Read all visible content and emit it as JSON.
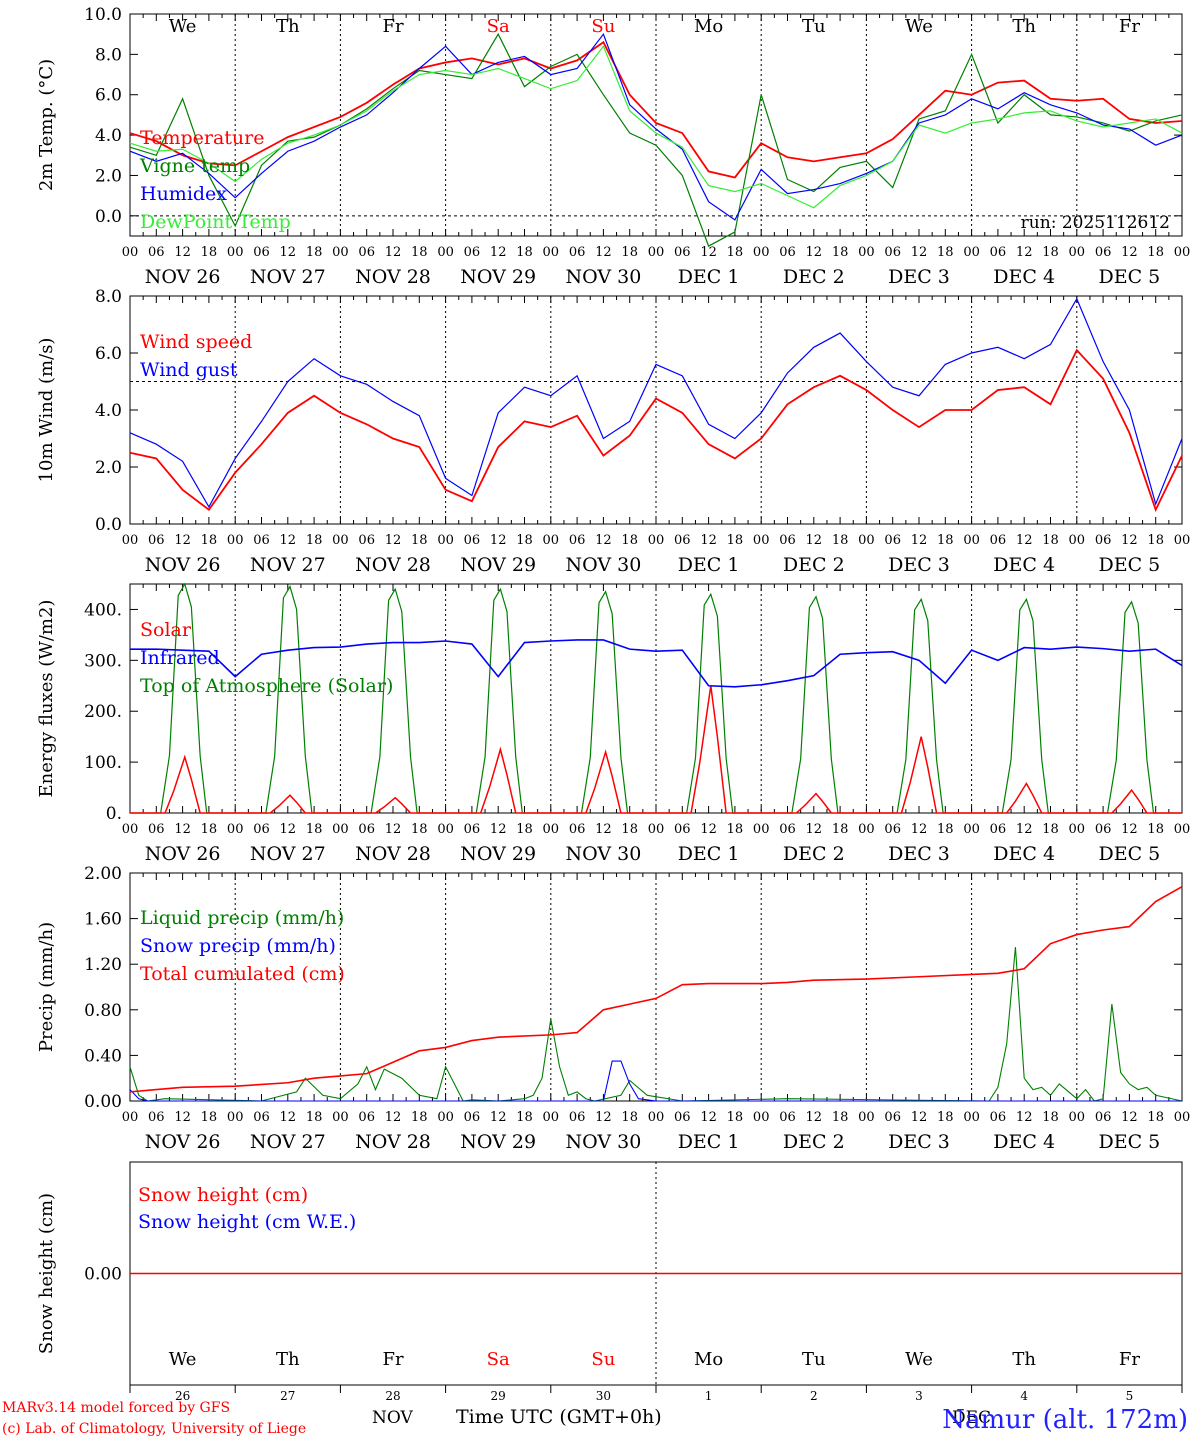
{
  "page": {
    "station": "Namur (alt. 172m)",
    "credit1": "MARv3.14 model forced by GFS",
    "credit2": "(c) Lab. of Climatology, University of Liege",
    "month_label": "NOV",
    "month_label2": "DEC",
    "xaxis_title": "Time UTC (GMT+0h)",
    "run_label": "run: 2025112612",
    "hour_labels": [
      "00",
      "06",
      "12",
      "18"
    ],
    "final_hour_label": "00",
    "date_labels": [
      "NOV 26",
      "NOV 27",
      "NOV 28",
      "NOV 29",
      "NOV 30",
      "DEC  1",
      "DEC  2",
      "DEC  3",
      "DEC  4",
      "DEC  5"
    ],
    "weekdays": [
      "We",
      "Th",
      "Fr",
      "Sa",
      "Su",
      "Mo",
      "Tu",
      "We",
      "Th",
      "Fr"
    ],
    "weekday_colors": [
      "#000000",
      "#000000",
      "#000000",
      "#ff0000",
      "#ff0000",
      "#000000",
      "#000000",
      "#000000",
      "#000000",
      "#000000"
    ],
    "day_numbers": [
      "26",
      "27",
      "28",
      "29",
      "30",
      "1",
      "2",
      "3",
      "4",
      "5"
    ],
    "colors": {
      "red": "#ff0000",
      "green": "#008000",
      "blue": "#0000ff",
      "lightgreen": "#33ee33",
      "station": "#2222ff"
    }
  },
  "chart_data": [
    {
      "id": "temp",
      "type": "line",
      "ylabel": "2m Temp. (°C)",
      "ylim": [
        -1,
        10
      ],
      "yticks": [
        0,
        2,
        4,
        6,
        8,
        10
      ],
      "ytick_labels": [
        "0.0",
        "2.0",
        "4.0",
        "6.0",
        "8.0",
        "10.0"
      ],
      "ref_line": 0,
      "x_hours": [
        0,
        6,
        12,
        18,
        24,
        30,
        36,
        42,
        48,
        54,
        60,
        66,
        72,
        78,
        84,
        90,
        96,
        102,
        108,
        114,
        120,
        126,
        132,
        138,
        144,
        150,
        156,
        162,
        168,
        174,
        180,
        186,
        192,
        198,
        204,
        210,
        216,
        222,
        228,
        234,
        240
      ],
      "series": [
        {
          "name": "Temperature",
          "color": "#ff0000",
          "values": [
            4.1,
            3.7,
            3.0,
            2.6,
            2.5,
            3.2,
            3.9,
            4.4,
            4.9,
            5.6,
            6.5,
            7.3,
            7.6,
            7.8,
            7.5,
            7.8,
            7.3,
            7.7,
            8.6,
            6.0,
            4.6,
            4.1,
            2.2,
            1.9,
            3.6,
            2.9,
            2.7,
            2.9,
            3.1,
            3.8,
            5.0,
            6.2,
            6.0,
            6.6,
            6.7,
            5.8,
            5.7,
            5.8,
            4.8,
            4.6,
            4.7
          ]
        },
        {
          "name": "Vigne temp",
          "color": "#008000",
          "values": [
            3.4,
            3.0,
            5.8,
            2.0,
            -0.5,
            2.5,
            3.7,
            3.9,
            4.5,
            5.3,
            6.3,
            7.2,
            7.0,
            6.8,
            9.0,
            6.4,
            7.4,
            8.0,
            6.0,
            4.1,
            3.5,
            2.0,
            -1.5,
            -0.8,
            6.0,
            1.8,
            1.2,
            2.4,
            2.7,
            1.4,
            4.8,
            5.2,
            8.0,
            4.6,
            6.0,
            5.0,
            4.9,
            4.6,
            4.2,
            4.7,
            5.0
          ]
        },
        {
          "name": "Humidex",
          "color": "#0000ff",
          "values": [
            3.2,
            2.7,
            3.1,
            2.1,
            0.9,
            2.1,
            3.2,
            3.7,
            4.4,
            5.0,
            6.1,
            7.3,
            8.4,
            7.0,
            7.6,
            7.9,
            7.0,
            7.3,
            9.0,
            5.5,
            4.3,
            3.3,
            0.7,
            -0.2,
            2.3,
            1.1,
            1.3,
            1.6,
            2.1,
            2.7,
            4.6,
            5.0,
            5.8,
            5.3,
            6.1,
            5.5,
            5.1,
            4.5,
            4.3,
            3.5,
            4.0
          ]
        },
        {
          "name": "DewPoint Temp",
          "color": "#33ee33",
          "values": [
            3.6,
            3.2,
            3.3,
            2.6,
            1.7,
            2.8,
            3.6,
            4.0,
            4.5,
            5.2,
            6.2,
            7.0,
            7.2,
            7.0,
            7.3,
            6.8,
            6.3,
            6.7,
            8.4,
            5.2,
            4.1,
            3.4,
            1.5,
            1.2,
            1.6,
            1.0,
            0.4,
            1.5,
            2.0,
            2.7,
            4.5,
            4.1,
            4.6,
            4.8,
            5.1,
            5.2,
            4.7,
            4.4,
            4.6,
            4.8,
            4.1
          ]
        }
      ]
    },
    {
      "id": "wind",
      "type": "line",
      "ylabel": "10m Wind (m/s)",
      "ylim": [
        0,
        8
      ],
      "yticks": [
        0,
        2,
        4,
        6,
        8
      ],
      "ytick_labels": [
        "0.0",
        "2.0",
        "4.0",
        "6.0",
        "8.0"
      ],
      "ref_line": 5,
      "x_hours": [
        0,
        6,
        12,
        18,
        24,
        30,
        36,
        42,
        48,
        54,
        60,
        66,
        72,
        78,
        84,
        90,
        96,
        102,
        108,
        114,
        120,
        126,
        132,
        138,
        144,
        150,
        156,
        162,
        168,
        174,
        180,
        186,
        192,
        198,
        204,
        210,
        216,
        222,
        228,
        234,
        240
      ],
      "series": [
        {
          "name": "Wind speed",
          "color": "#ff0000",
          "values": [
            2.5,
            2.3,
            1.2,
            0.5,
            1.8,
            2.8,
            3.9,
            4.5,
            3.9,
            3.5,
            3.0,
            2.7,
            1.2,
            0.8,
            2.7,
            3.6,
            3.4,
            3.8,
            2.4,
            3.1,
            4.4,
            3.9,
            2.8,
            2.3,
            3.0,
            4.2,
            4.8,
            5.2,
            4.7,
            4.0,
            3.4,
            4.0,
            4.0,
            4.7,
            4.8,
            4.2,
            6.1,
            5.1,
            3.2,
            0.5,
            2.4
          ]
        },
        {
          "name": "Wind gust",
          "color": "#0000ff",
          "values": [
            3.2,
            2.8,
            2.2,
            0.6,
            2.3,
            3.6,
            5.0,
            5.8,
            5.2,
            4.9,
            4.3,
            3.8,
            1.6,
            1.0,
            3.9,
            4.8,
            4.5,
            5.2,
            3.0,
            3.6,
            5.6,
            5.2,
            3.5,
            3.0,
            3.9,
            5.3,
            6.2,
            6.7,
            5.7,
            4.8,
            4.5,
            5.6,
            6.0,
            6.2,
            5.8,
            6.3,
            7.9,
            5.7,
            4.0,
            0.7,
            3.0
          ]
        }
      ]
    },
    {
      "id": "energy",
      "type": "line",
      "ylabel": "Energy fluxes (W/m2)",
      "ylim": [
        0,
        450
      ],
      "yticks": [
        0,
        100,
        200,
        300,
        400
      ],
      "ytick_labels": [
        "0.",
        "100.",
        "200.",
        "300.",
        "400."
      ],
      "infrared_hours": [
        0,
        6,
        12,
        18,
        24,
        30,
        36,
        42,
        48,
        54,
        60,
        66,
        72,
        78,
        84,
        90,
        96,
        102,
        108,
        114,
        120,
        126,
        132,
        138,
        144,
        150,
        156,
        162,
        168,
        174,
        180,
        186,
        192,
        198,
        204,
        210,
        216,
        222,
        228,
        234,
        240
      ],
      "infrared_values": [
        322,
        322,
        320,
        318,
        268,
        312,
        320,
        325,
        326,
        332,
        335,
        335,
        338,
        332,
        268,
        335,
        338,
        340,
        340,
        322,
        318,
        320,
        250,
        248,
        252,
        260,
        270,
        312,
        315,
        317,
        300,
        255,
        320,
        300,
        325,
        322,
        326,
        323,
        318,
        322,
        290
      ],
      "toa_peaks": [
        450,
        445,
        440,
        440,
        435,
        430,
        425,
        420,
        420,
        415
      ],
      "solar_peaks": [
        110,
        35,
        30,
        125,
        120,
        250,
        38,
        150,
        58,
        45
      ],
      "series": [
        {
          "name": "Solar",
          "color": "#ff0000"
        },
        {
          "name": "Infrared",
          "color": "#0000ff"
        },
        {
          "name": "Top of Atmosphere (Solar)",
          "color": "#008000"
        }
      ]
    },
    {
      "id": "precip",
      "type": "line",
      "ylabel": "Precip (mm/h)",
      "ylim": [
        0,
        2
      ],
      "yticks": [
        0,
        0.4,
        0.8,
        1.2,
        1.6,
        2.0
      ],
      "ytick_labels": [
        "0.00",
        "0.40",
        "0.80",
        "1.20",
        "1.60",
        "2.00"
      ],
      "total_hours": [
        0,
        6,
        12,
        24,
        36,
        42,
        48,
        54,
        60,
        66,
        72,
        78,
        84,
        96,
        102,
        108,
        114,
        120,
        126,
        132,
        144,
        150,
        156,
        168,
        180,
        192,
        198,
        204,
        210,
        216,
        222,
        228,
        234,
        240
      ],
      "total_values": [
        0.08,
        0.1,
        0.12,
        0.13,
        0.16,
        0.2,
        0.22,
        0.24,
        0.34,
        0.44,
        0.47,
        0.53,
        0.56,
        0.58,
        0.6,
        0.8,
        0.85,
        0.9,
        1.02,
        1.03,
        1.03,
        1.04,
        1.06,
        1.07,
        1.09,
        1.11,
        1.12,
        1.16,
        1.38,
        1.46,
        1.5,
        1.53,
        1.75,
        1.88
      ],
      "liquid_hours": [
        0,
        2,
        4,
        8,
        30,
        38,
        40,
        44,
        48,
        52,
        54,
        56,
        58,
        62,
        66,
        70,
        72,
        74,
        76,
        78,
        84,
        90,
        92,
        94,
        96,
        98,
        100,
        102,
        104,
        106,
        112,
        114,
        118,
        126,
        150,
        196,
        198,
        200,
        202,
        204,
        206,
        208,
        210,
        212,
        216,
        218,
        220,
        222,
        224,
        226,
        228,
        230,
        232,
        234,
        240
      ],
      "liquid_values": [
        0.3,
        0.05,
        0.0,
        0.02,
        0.0,
        0.08,
        0.2,
        0.05,
        0.02,
        0.15,
        0.3,
        0.1,
        0.28,
        0.2,
        0.05,
        0.02,
        0.3,
        0.15,
        0.0,
        0.01,
        0.0,
        0.02,
        0.05,
        0.2,
        0.72,
        0.3,
        0.05,
        0.08,
        0.02,
        0.0,
        0.05,
        0.18,
        0.05,
        0.0,
        0.02,
        0.0,
        0.12,
        0.5,
        1.35,
        0.2,
        0.1,
        0.12,
        0.05,
        0.15,
        0.02,
        0.1,
        0.0,
        0.02,
        0.85,
        0.25,
        0.15,
        0.1,
        0.12,
        0.05,
        0.0
      ],
      "snow_hours": [
        0,
        2,
        4,
        20,
        108,
        110,
        112,
        114,
        116,
        120,
        240
      ],
      "snow_values": [
        0.1,
        0.02,
        0.0,
        0.0,
        0.0,
        0.35,
        0.35,
        0.15,
        0.02,
        0.0,
        0.0
      ],
      "series": [
        {
          "name": "Liquid precip (mm/h)",
          "color": "#008000"
        },
        {
          "name": "Snow precip (mm/h)",
          "color": "#0000ff"
        },
        {
          "name": "Total cumulated (cm)",
          "color": "#ff0000"
        }
      ]
    },
    {
      "id": "snow",
      "type": "line",
      "ylabel": "Snow height (cm)",
      "ylim": [
        -1,
        1
      ],
      "yticks": [
        0
      ],
      "ytick_labels": [
        "0.00"
      ],
      "series": [
        {
          "name": "Snow height (cm)",
          "color": "#ff0000",
          "values": [
            0,
            0
          ]
        },
        {
          "name": "Snow height (cm W.E.)",
          "color": "#0000ff",
          "values": [
            0,
            0
          ]
        }
      ]
    }
  ]
}
